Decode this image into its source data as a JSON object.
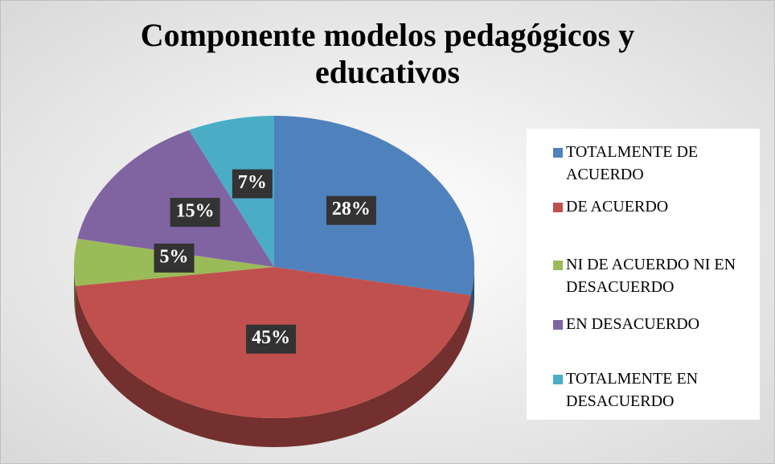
{
  "chart_data": {
    "type": "pie3d",
    "title": "Componente modelos pedagógicos y educativos",
    "categories": [
      "TOTALMENTE DE ACUERDO",
      "DE ACUERDO",
      "NI DE ACUERDO NI EN DESACUERDO",
      "EN DESACUERDO",
      "TOTALMENTE EN DESACUERDO"
    ],
    "values": [
      28,
      45,
      5,
      15,
      7
    ],
    "value_labels": [
      "28%",
      "45%",
      "5%",
      "15%",
      "7%"
    ],
    "colors": [
      "#4f81bd",
      "#c0504d",
      "#9bbb59",
      "#8064a2",
      "#4bacc6"
    ],
    "legend": "right"
  }
}
